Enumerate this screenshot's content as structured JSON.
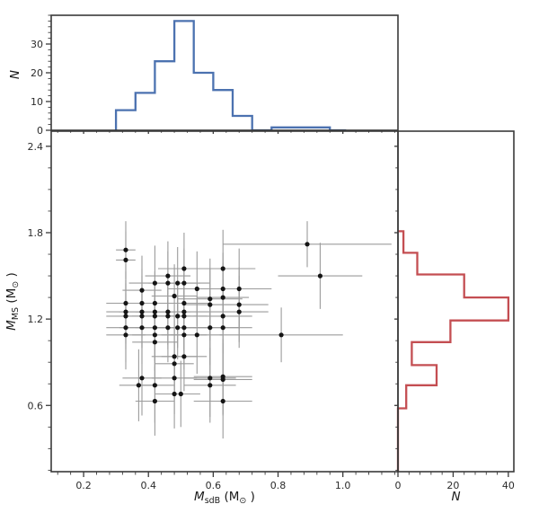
{
  "figure": {
    "background": "#ffffff",
    "spine_color": "#3a3a3a",
    "tick_color": "#3a3a3a",
    "tick_label_color": "#2b2b2b",
    "axis_label_color": "#1a1a1a"
  },
  "chart_data": [
    {
      "id": "main-scatter",
      "type": "scatter",
      "xlabel": "M_sdB (M⊙)",
      "ylabel": "M_MS (M⊙)",
      "xlabel_parts": [
        {
          "t": "M",
          "i": 1
        },
        {
          "t": "sdB",
          "sub": 1
        },
        {
          "t": " (M"
        },
        {
          "t": "⊙",
          "sub": 1
        },
        {
          "t": " )"
        }
      ],
      "ylabel_parts": [
        {
          "t": "M",
          "i": 1
        },
        {
          "t": "MS",
          "sub": 1
        },
        {
          "t": " (M"
        },
        {
          "t": "⊙",
          "sub": 1
        },
        {
          "t": " )"
        }
      ],
      "xlim": [
        0.1,
        1.17
      ],
      "ylim": [
        0.14,
        2.505
      ],
      "xticks": [
        0.2,
        0.4,
        0.6,
        0.8,
        1.0
      ],
      "xtick_labels": [
        "0.2",
        "0.4",
        "0.6",
        "0.8",
        "1.0"
      ],
      "yticks": [
        0.6,
        1.2,
        1.8,
        2.4
      ],
      "ytick_labels": [
        "0.6",
        "1.2",
        "1.8",
        "2.4"
      ],
      "x_minor_step": 0.04,
      "y_minor_step": 0.15,
      "marker_color": "#151515",
      "errorbar_color": "#9b9b9b",
      "points": [
        [
          0.33,
          1.68,
          0.03,
          0.2
        ],
        [
          0.33,
          1.61,
          0.03,
          0.2
        ],
        [
          0.51,
          1.55,
          0.08,
          0.25
        ],
        [
          0.63,
          1.55,
          0.1,
          0.27
        ],
        [
          0.46,
          1.5,
          0.07,
          0.24
        ],
        [
          0.93,
          1.5,
          0.13,
          0.23
        ],
        [
          0.42,
          1.45,
          0.08,
          0.26
        ],
        [
          0.46,
          1.45,
          0.06,
          0.22
        ],
        [
          0.49,
          1.45,
          0.07,
          0.25
        ],
        [
          0.51,
          1.45,
          0.08,
          0.24
        ],
        [
          0.55,
          1.41,
          0.09,
          0.26
        ],
        [
          0.63,
          1.41,
          0.09,
          0.25
        ],
        [
          0.68,
          1.41,
          0.1,
          0.28
        ],
        [
          0.38,
          1.4,
          0.06,
          0.24
        ],
        [
          0.48,
          1.36,
          0.07,
          0.22
        ],
        [
          0.63,
          1.35,
          0.08,
          0.24
        ],
        [
          0.59,
          1.34,
          0.1,
          0.28
        ],
        [
          0.33,
          1.31,
          0.06,
          0.22
        ],
        [
          0.38,
          1.31,
          0.07,
          0.24
        ],
        [
          0.42,
          1.31,
          0.07,
          0.22
        ],
        [
          0.51,
          1.31,
          0.08,
          0.25
        ],
        [
          0.68,
          1.3,
          0.09,
          0.26
        ],
        [
          0.59,
          1.3,
          0.08,
          0.25
        ],
        [
          0.33,
          1.25,
          0.06,
          0.22
        ],
        [
          0.38,
          1.25,
          0.07,
          0.25
        ],
        [
          0.42,
          1.25,
          0.06,
          0.21
        ],
        [
          0.46,
          1.25,
          0.07,
          0.23
        ],
        [
          0.51,
          1.25,
          0.08,
          0.26
        ],
        [
          0.68,
          1.25,
          0.09,
          0.25
        ],
        [
          0.33,
          1.22,
          0.06,
          0.23
        ],
        [
          0.38,
          1.22,
          0.06,
          0.22
        ],
        [
          0.42,
          1.22,
          0.07,
          0.24
        ],
        [
          0.46,
          1.22,
          0.07,
          0.23
        ],
        [
          0.49,
          1.22,
          0.06,
          0.22
        ],
        [
          0.51,
          1.22,
          0.07,
          0.24
        ],
        [
          0.63,
          1.22,
          0.09,
          0.26
        ],
        [
          0.89,
          1.72,
          0.26,
          0.16
        ],
        [
          0.33,
          1.14,
          0.06,
          0.24
        ],
        [
          0.38,
          1.14,
          0.07,
          0.25
        ],
        [
          0.42,
          1.14,
          0.06,
          0.23
        ],
        [
          0.46,
          1.14,
          0.07,
          0.24
        ],
        [
          0.49,
          1.14,
          0.06,
          0.22
        ],
        [
          0.51,
          1.14,
          0.07,
          0.25
        ],
        [
          0.59,
          1.14,
          0.09,
          0.26
        ],
        [
          0.63,
          1.14,
          0.09,
          0.25
        ],
        [
          0.33,
          1.09,
          0.06,
          0.24
        ],
        [
          0.42,
          1.09,
          0.07,
          0.25
        ],
        [
          0.51,
          1.09,
          0.07,
          0.24
        ],
        [
          0.55,
          1.09,
          0.08,
          0.27
        ],
        [
          0.81,
          1.09,
          0.19,
          0.19
        ],
        [
          0.42,
          1.04,
          0.07,
          0.26
        ],
        [
          0.48,
          0.94,
          0.07,
          0.25
        ],
        [
          0.51,
          0.94,
          0.07,
          0.24
        ],
        [
          0.48,
          0.89,
          0.06,
          0.24
        ],
        [
          0.38,
          0.79,
          0.06,
          0.26
        ],
        [
          0.48,
          0.79,
          0.07,
          0.25
        ],
        [
          0.59,
          0.79,
          0.08,
          0.27
        ],
        [
          0.63,
          0.8,
          0.09,
          0.26
        ],
        [
          0.37,
          0.74,
          0.06,
          0.25
        ],
        [
          0.42,
          0.74,
          0.06,
          0.26
        ],
        [
          0.59,
          0.74,
          0.08,
          0.26
        ],
        [
          0.63,
          0.78,
          0.09,
          0.25
        ],
        [
          0.48,
          0.68,
          0.06,
          0.24
        ],
        [
          0.5,
          0.68,
          0.06,
          0.23
        ],
        [
          0.42,
          0.63,
          0.06,
          0.24
        ],
        [
          0.63,
          0.63,
          0.09,
          0.26
        ]
      ]
    },
    {
      "id": "top-histogram",
      "type": "histogram-step",
      "orientation": "vertical",
      "series_name": "M_sdB distribution",
      "color": "#4C72B0",
      "ylabel": "N",
      "ylabel_parts": [
        {
          "t": "N",
          "i": 1
        }
      ],
      "ylim": [
        0,
        40
      ],
      "yticks": [
        0,
        10,
        20,
        30
      ],
      "ytick_labels": [
        "0",
        "10",
        "20",
        "30"
      ],
      "y_minor_step": 2,
      "bin_edges": [
        0.3,
        0.36,
        0.42,
        0.48,
        0.54,
        0.6,
        0.66,
        0.72,
        0.78,
        0.84,
        0.9,
        0.96,
        1.01
      ],
      "counts": [
        7,
        13,
        24,
        38,
        20,
        14,
        5,
        0,
        1,
        1,
        1,
        0
      ]
    },
    {
      "id": "right-histogram",
      "type": "histogram-step",
      "orientation": "horizontal",
      "series_name": "M_MS distribution",
      "color": "#C44E52",
      "xlabel": "N",
      "xlabel_parts": [
        {
          "t": "N",
          "i": 1
        }
      ],
      "xlim": [
        0,
        42
      ],
      "xticks": [
        0,
        20,
        40
      ],
      "xtick_labels": [
        "0",
        "20",
        "40"
      ],
      "x_minor_step": 4,
      "bin_edges": [
        0.58,
        0.74,
        0.88,
        1.04,
        1.19,
        1.35,
        1.51,
        1.66,
        1.81
      ],
      "counts": [
        3,
        14,
        5,
        19,
        40,
        24,
        7,
        2
      ]
    }
  ]
}
